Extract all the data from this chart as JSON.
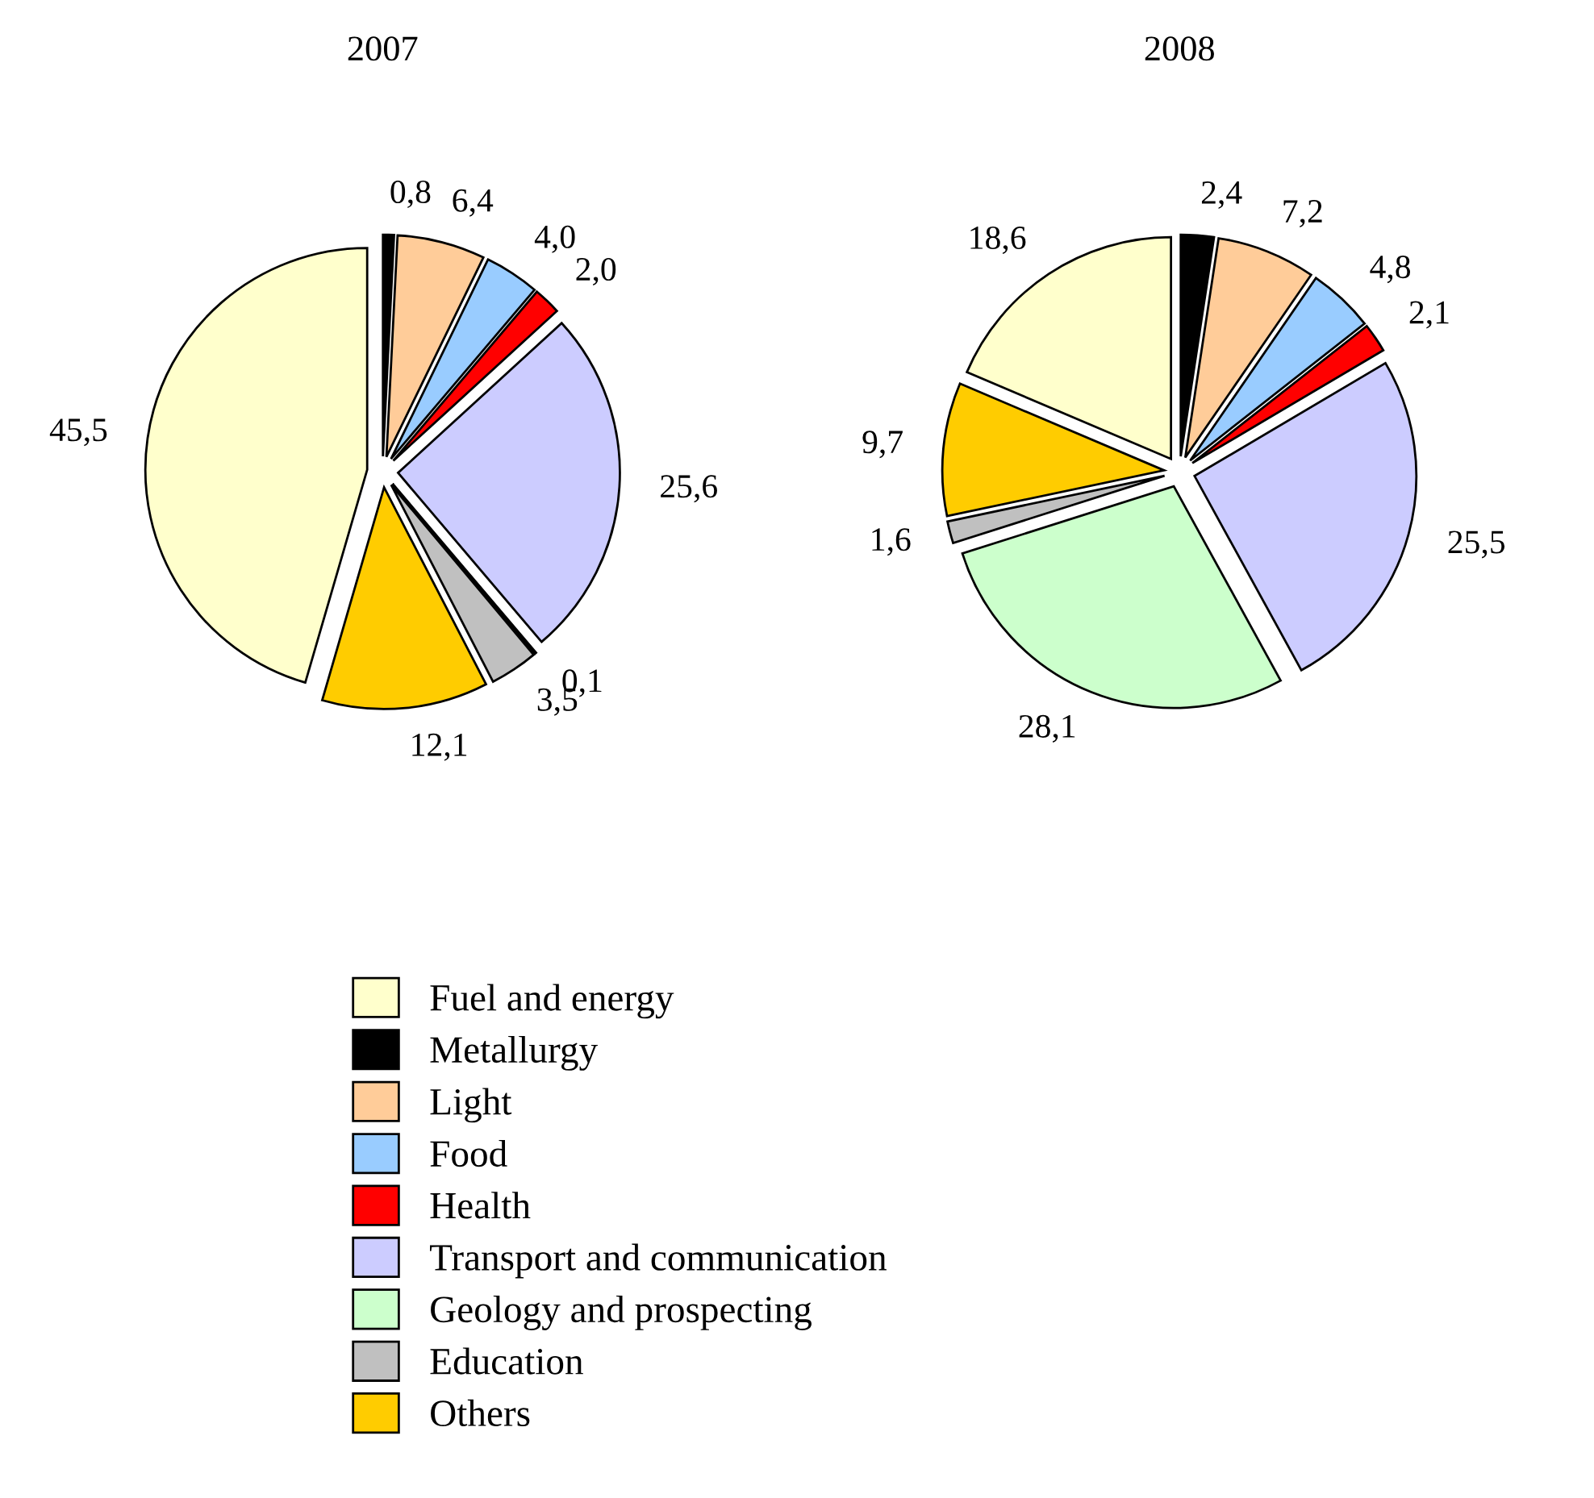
{
  "chart_data": [
    {
      "type": "pie",
      "title": "2007",
      "categories": [
        "Fuel and energy",
        "Metallurgy",
        "Light",
        "Food",
        "Health",
        "Transport and communication",
        "Geology and prospecting",
        "Education",
        "Others"
      ],
      "values": [
        45.5,
        0.8,
        6.4,
        4.0,
        2.0,
        25.6,
        0.1,
        3.5,
        12.1
      ],
      "value_labels": [
        "45,5",
        "0,8",
        "6,4",
        "4,0",
        "2,0",
        "25,6",
        "0,1",
        "3,5",
        "12,1"
      ],
      "colors": [
        "#ffffcc",
        "#000000",
        "#ffcc99",
        "#99ccff",
        "#ff0000",
        "#ccccff",
        "#ccffcc",
        "#c0c0c0",
        "#ffcc00"
      ],
      "legend": "bottom"
    },
    {
      "type": "pie",
      "title": "2008",
      "values": [
        18.6,
        2.4,
        7.2,
        4.8,
        2.1,
        25.5,
        28.1,
        1.6,
        9.7
      ],
      "value_labels": [
        "18,6",
        "2,4",
        "7,2",
        "4,8",
        "2,1",
        "25,5",
        "28,1",
        "1,6",
        "9,7"
      ],
      "colors": [
        "#ffffcc",
        "#000000",
        "#ffcc99",
        "#99ccff",
        "#ff0000",
        "#ccccff",
        "#ccffcc",
        "#c0c0c0",
        "#ffcc00"
      ]
    }
  ]
}
